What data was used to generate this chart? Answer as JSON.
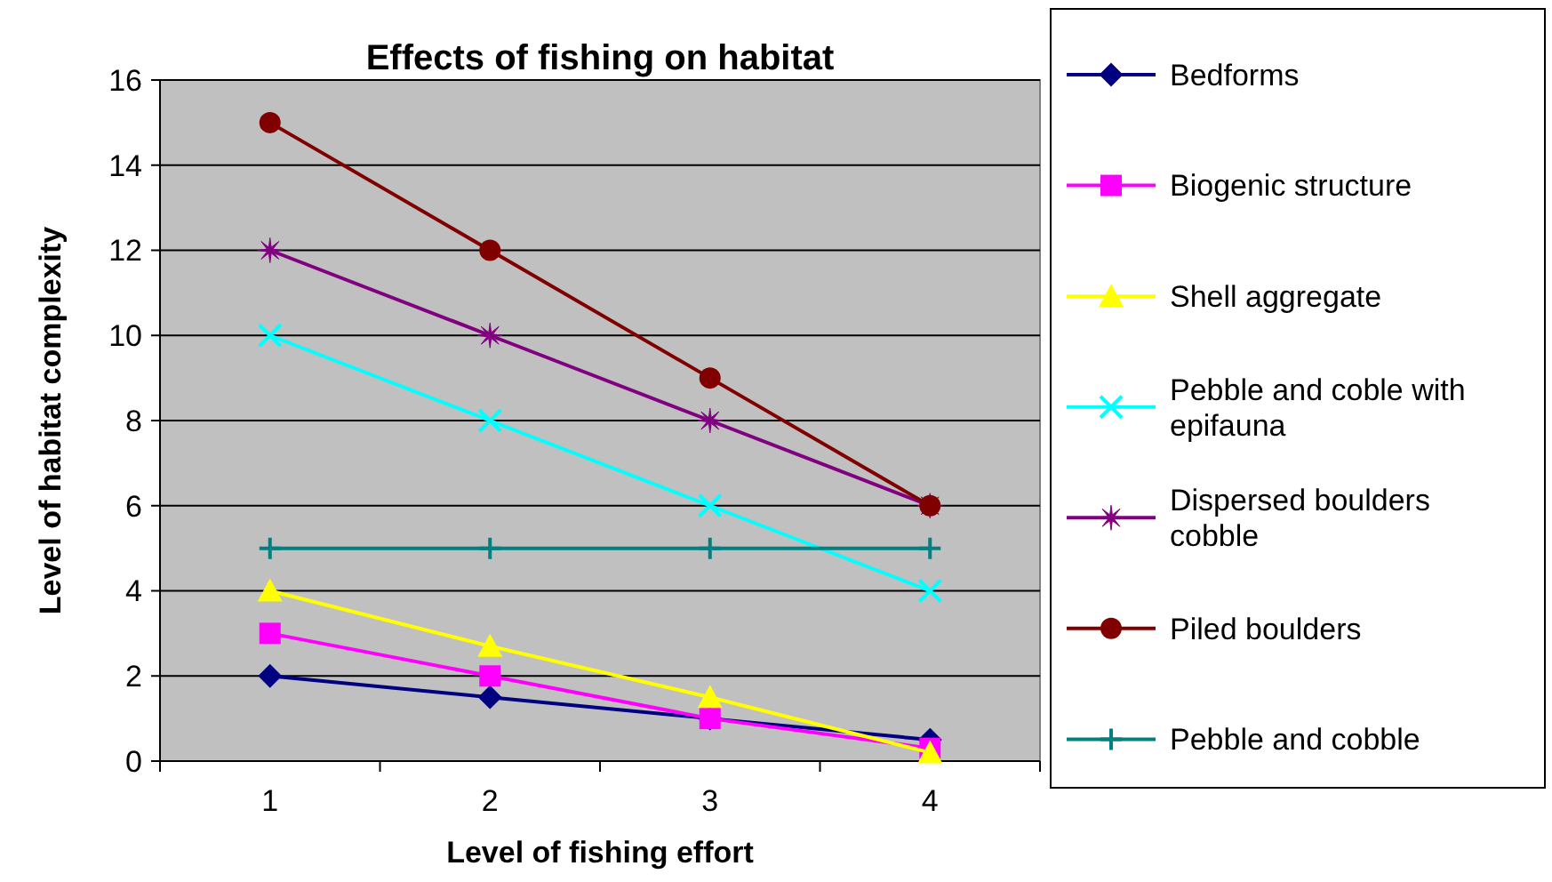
{
  "chart_data": {
    "type": "line",
    "title": "Effects of fishing on habitat",
    "xlabel": "Level of fishing effort",
    "ylabel": "Level of habitat complexity",
    "categories": [
      "1",
      "2",
      "3",
      "4"
    ],
    "ylim": [
      0,
      16
    ],
    "yticks": [
      0,
      2,
      4,
      6,
      8,
      10,
      12,
      14,
      16
    ],
    "grid": "y",
    "legend": "right",
    "series": [
      {
        "name": "Bedforms",
        "color": "#000080",
        "marker": "diamond",
        "values": [
          2,
          1.5,
          1,
          0.5
        ]
      },
      {
        "name": "Biogenic structure",
        "color": "#ff00ff",
        "marker": "square",
        "values": [
          3,
          2,
          1,
          0.3
        ]
      },
      {
        "name": "Shell aggregate",
        "color": "#ffff00",
        "marker": "triangle",
        "values": [
          4,
          2.7,
          1.5,
          0.2
        ]
      },
      {
        "name": "Pebble and coble with epifauna",
        "color": "#00ffff",
        "marker": "cross",
        "values": [
          10,
          8,
          6,
          4
        ]
      },
      {
        "name": "Dispersed boulders cobble",
        "color": "#800080",
        "marker": "star",
        "values": [
          12,
          10,
          8,
          6
        ]
      },
      {
        "name": "Piled boulders",
        "color": "#800000",
        "marker": "circle",
        "values": [
          15,
          12,
          9,
          6
        ]
      },
      {
        "name": "Pebble and cobble",
        "color": "#008080",
        "marker": "plus",
        "values": [
          5,
          5,
          5,
          5
        ]
      }
    ]
  }
}
